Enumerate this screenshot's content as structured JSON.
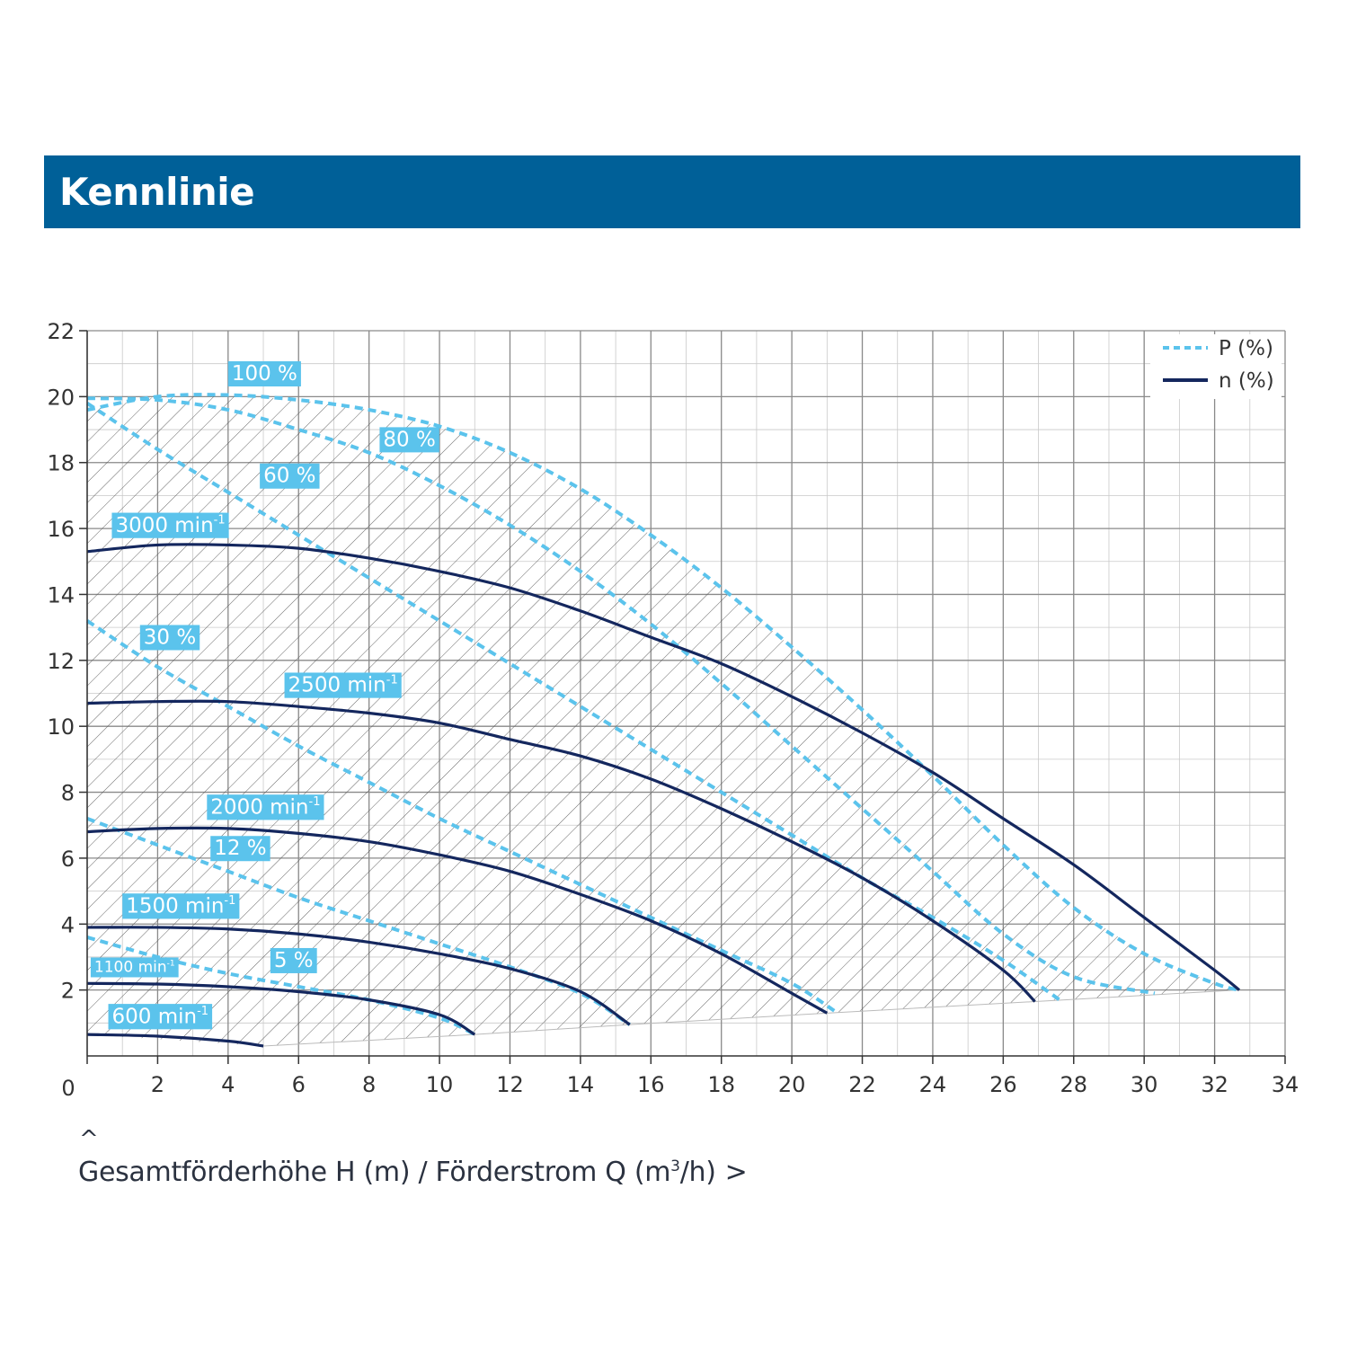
{
  "header": {
    "title": "Kennlinie"
  },
  "caption": {
    "up_mark": "^",
    "text_before_sup": "Gesamtförderhöhe H (m) / Förderstrom Q (m",
    "sup": "3",
    "text_after_sup": "/h)",
    "arrow": ">"
  },
  "colors": {
    "header_bg": "#006098",
    "power": "#5bc3ec",
    "speed": "#14275e",
    "grid": "#8a8a8a"
  },
  "chart_data": {
    "type": "line",
    "xlim": [
      0,
      34
    ],
    "ylim": [
      0,
      22
    ],
    "x_ticks": [
      0,
      2,
      4,
      6,
      8,
      10,
      12,
      14,
      16,
      18,
      20,
      22,
      24,
      26,
      28,
      30,
      32,
      34
    ],
    "y_ticks": [
      2,
      4,
      6,
      8,
      10,
      12,
      14,
      16,
      18,
      20,
      22
    ],
    "origin_label": "0",
    "grid": true,
    "legend": {
      "placement": "top-right",
      "entries": [
        {
          "label": "P (%)",
          "style": "dashed",
          "color": "#5bc3ec"
        },
        {
          "label": "n (%)",
          "style": "solid",
          "color": "#14275e"
        }
      ]
    },
    "series": [
      {
        "group": "n",
        "name": "3000 min",
        "sup": "-1",
        "points": [
          [
            0,
            15.3
          ],
          [
            2,
            15.5
          ],
          [
            4,
            15.5
          ],
          [
            6,
            15.4
          ],
          [
            8,
            15.1
          ],
          [
            10,
            14.7
          ],
          [
            12,
            14.2
          ],
          [
            14,
            13.5
          ],
          [
            16,
            12.7
          ],
          [
            18,
            11.9
          ],
          [
            20,
            10.9
          ],
          [
            22,
            9.8
          ],
          [
            24,
            8.6
          ],
          [
            26,
            7.2
          ],
          [
            28,
            5.8
          ],
          [
            30,
            4.2
          ],
          [
            32,
            2.6
          ],
          [
            32.7,
            2.0
          ]
        ]
      },
      {
        "group": "n",
        "name": "2500 min",
        "sup": "-1",
        "points": [
          [
            0,
            10.7
          ],
          [
            2,
            10.75
          ],
          [
            4,
            10.75
          ],
          [
            6,
            10.6
          ],
          [
            8,
            10.4
          ],
          [
            10,
            10.1
          ],
          [
            12,
            9.6
          ],
          [
            14,
            9.1
          ],
          [
            16,
            8.4
          ],
          [
            18,
            7.5
          ],
          [
            20,
            6.5
          ],
          [
            22,
            5.4
          ],
          [
            24,
            4.1
          ],
          [
            26,
            2.6
          ],
          [
            26.9,
            1.65
          ]
        ]
      },
      {
        "group": "n",
        "name": "2000 min",
        "sup": "-1",
        "points": [
          [
            0,
            6.8
          ],
          [
            2,
            6.9
          ],
          [
            4,
            6.9
          ],
          [
            6,
            6.75
          ],
          [
            8,
            6.5
          ],
          [
            10,
            6.1
          ],
          [
            12,
            5.6
          ],
          [
            14,
            4.9
          ],
          [
            16,
            4.1
          ],
          [
            18,
            3.1
          ],
          [
            20,
            1.9
          ],
          [
            21,
            1.3
          ]
        ]
      },
      {
        "group": "n",
        "name": "1500 min",
        "sup": "-1",
        "points": [
          [
            0,
            3.9
          ],
          [
            2,
            3.9
          ],
          [
            4,
            3.85
          ],
          [
            6,
            3.7
          ],
          [
            8,
            3.45
          ],
          [
            10,
            3.1
          ],
          [
            12,
            2.65
          ],
          [
            14,
            1.95
          ],
          [
            15.4,
            0.95
          ]
        ]
      },
      {
        "group": "n",
        "name": "1100 min",
        "sup": "-1",
        "points": [
          [
            0,
            2.2
          ],
          [
            2,
            2.18
          ],
          [
            4,
            2.1
          ],
          [
            6,
            1.95
          ],
          [
            8,
            1.7
          ],
          [
            10,
            1.25
          ],
          [
            11,
            0.65
          ]
        ]
      },
      {
        "group": "n",
        "name": "600 min",
        "sup": "-1",
        "points": [
          [
            0,
            0.65
          ],
          [
            2,
            0.6
          ],
          [
            4,
            0.45
          ],
          [
            5,
            0.3
          ]
        ]
      },
      {
        "group": "P",
        "name": "100 %",
        "points": [
          [
            0,
            19.6
          ],
          [
            2,
            20.0
          ],
          [
            4,
            20.05
          ],
          [
            6,
            19.9
          ],
          [
            8,
            19.6
          ],
          [
            10,
            19.1
          ],
          [
            12,
            18.3
          ],
          [
            14,
            17.2
          ],
          [
            16,
            15.8
          ],
          [
            18,
            14.2
          ],
          [
            20,
            12.4
          ],
          [
            22,
            10.5
          ],
          [
            24,
            8.5
          ],
          [
            26,
            6.4
          ],
          [
            28,
            4.5
          ],
          [
            30,
            3.1
          ],
          [
            32,
            2.2
          ],
          [
            32.7,
            2.0
          ]
        ]
      },
      {
        "group": "P",
        "name": "80 %",
        "points": [
          [
            0,
            19.95
          ],
          [
            2,
            19.9
          ],
          [
            4,
            19.6
          ],
          [
            6,
            19.0
          ],
          [
            8,
            18.3
          ],
          [
            10,
            17.3
          ],
          [
            12,
            16.1
          ],
          [
            14,
            14.7
          ],
          [
            16,
            13.1
          ],
          [
            18,
            11.3
          ],
          [
            20,
            9.4
          ],
          [
            22,
            7.5
          ],
          [
            24,
            5.6
          ],
          [
            26,
            3.7
          ],
          [
            28,
            2.4
          ],
          [
            30.3,
            1.9
          ]
        ]
      },
      {
        "group": "P",
        "name": "60 %",
        "points": [
          [
            0,
            19.8
          ],
          [
            2,
            18.4
          ],
          [
            4,
            17.1
          ],
          [
            6,
            15.8
          ],
          [
            8,
            14.5
          ],
          [
            10,
            13.2
          ],
          [
            12,
            11.9
          ],
          [
            14,
            10.6
          ],
          [
            16,
            9.3
          ],
          [
            18,
            8.0
          ],
          [
            20,
            6.7
          ],
          [
            22,
            5.4
          ],
          [
            24,
            4.2
          ],
          [
            26,
            2.9
          ],
          [
            27.6,
            1.7
          ]
        ]
      },
      {
        "group": "P",
        "name": "30 %",
        "points": [
          [
            0,
            13.2
          ],
          [
            2,
            11.8
          ],
          [
            4,
            10.6
          ],
          [
            6,
            9.4
          ],
          [
            8,
            8.3
          ],
          [
            10,
            7.2
          ],
          [
            12,
            6.2
          ],
          [
            14,
            5.2
          ],
          [
            16,
            4.2
          ],
          [
            18,
            3.2
          ],
          [
            20,
            2.2
          ],
          [
            21.3,
            1.3
          ]
        ]
      },
      {
        "group": "P",
        "name": "12 %",
        "points": [
          [
            0,
            7.2
          ],
          [
            2,
            6.4
          ],
          [
            4,
            5.6
          ],
          [
            6,
            4.8
          ],
          [
            8,
            4.1
          ],
          [
            10,
            3.4
          ],
          [
            12,
            2.7
          ],
          [
            14,
            1.9
          ],
          [
            15.4,
            0.95
          ]
        ]
      },
      {
        "group": "P",
        "name": "5 %",
        "points": [
          [
            0,
            3.6
          ],
          [
            2,
            3.0
          ],
          [
            4,
            2.5
          ],
          [
            6,
            2.1
          ],
          [
            8,
            1.7
          ],
          [
            10,
            1.15
          ],
          [
            11,
            0.65
          ]
        ]
      }
    ],
    "curve_labels": [
      {
        "text": "100 %",
        "at": [
          4.0,
          20.5
        ]
      },
      {
        "text": "80 %",
        "at": [
          8.3,
          18.5
        ]
      },
      {
        "text": "60 %",
        "at": [
          4.9,
          17.4
        ]
      },
      {
        "text": "3000 min",
        "sup": "-1",
        "at": [
          0.7,
          15.9
        ]
      },
      {
        "text": "30 %",
        "at": [
          1.5,
          12.5
        ]
      },
      {
        "text": "2500 min",
        "sup": "-1",
        "at": [
          5.6,
          11.05
        ]
      },
      {
        "text": "2000 min",
        "sup": "-1",
        "at": [
          3.4,
          7.35
        ]
      },
      {
        "text": "12 %",
        "at": [
          3.5,
          6.1
        ]
      },
      {
        "text": "1500 min",
        "sup": "-1",
        "at": [
          1.0,
          4.35
        ]
      },
      {
        "text": "1100 min",
        "sup": "-1",
        "at": [
          0.1,
          2.55
        ]
      },
      {
        "text": "5 %",
        "at": [
          5.2,
          2.7
        ]
      },
      {
        "text": "600 min",
        "sup": "-1",
        "at": [
          0.6,
          1.0
        ]
      }
    ]
  }
}
